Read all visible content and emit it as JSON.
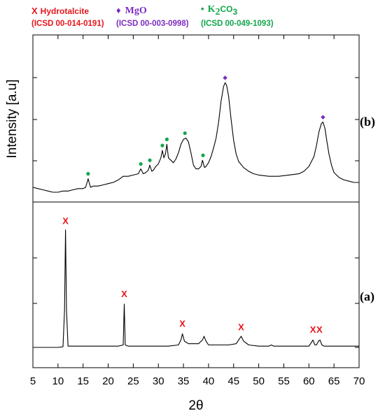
{
  "legend": [
    {
      "marker": "x",
      "symbol": "X",
      "name": "Hydrotalcite",
      "name_sub": "",
      "name_after": "",
      "reference": "(ICSD 00-014-0191)",
      "color": "#e8151b"
    },
    {
      "marker": "diamond",
      "symbol": "♦",
      "name": "MgO",
      "name_sub": "",
      "name_after": "",
      "reference": "(ICSD 00-003-0998)",
      "color": "#7b2cbf"
    },
    {
      "marker": "dot",
      "symbol": "•",
      "name": "K",
      "name_sub": "2",
      "name_after": "CO",
      "name_sub2": "3",
      "reference": "(ICSD 00-049-1093)",
      "color": "#12a64b"
    }
  ],
  "chart_data": {
    "type": "line",
    "xlabel": "2θ",
    "ylabel": "Intensity [a.u]",
    "xlim": [
      5,
      70
    ],
    "xticks": [
      5,
      10,
      15,
      20,
      25,
      30,
      35,
      40,
      45,
      50,
      55,
      60,
      65,
      70
    ],
    "grid": false,
    "legend_position": "top",
    "panels": [
      {
        "label": "(b)",
        "ylim": [
          0,
          100
        ],
        "series": [
          {
            "points": [
              [
                5,
                0
              ],
              [
                6,
                -1
              ],
              [
                7,
                -2
              ],
              [
                8,
                -3
              ],
              [
                9,
                -4
              ],
              [
                10,
                -4
              ],
              [
                11,
                -3
              ],
              [
                12,
                -3
              ],
              [
                13,
                -2
              ],
              [
                14,
                -1
              ],
              [
                15,
                -1
              ],
              [
                15.5,
                0
              ],
              [
                15.8,
                4
              ],
              [
                16,
                7
              ],
              [
                16.2,
                4
              ],
              [
                16.5,
                0
              ],
              [
                17,
                1
              ],
              [
                18,
                1
              ],
              [
                19,
                2
              ],
              [
                20,
                3
              ],
              [
                21,
                4
              ],
              [
                22,
                6
              ],
              [
                23,
                9
              ],
              [
                24,
                9
              ],
              [
                25,
                10
              ],
              [
                26,
                11
              ],
              [
                26.5,
                15
              ],
              [
                27,
                11
              ],
              [
                27.5,
                12
              ],
              [
                28,
                14
              ],
              [
                28.3,
                18
              ],
              [
                28.7,
                13
              ],
              [
                29,
                14
              ],
              [
                29.5,
                17
              ],
              [
                30,
                19
              ],
              [
                30.5,
                24
              ],
              [
                30.8,
                30
              ],
              [
                31.1,
                24
              ],
              [
                31.4,
                27
              ],
              [
                31.7,
                35
              ],
              [
                32,
                24
              ],
              [
                32.5,
                22
              ],
              [
                33,
                20
              ],
              [
                33.5,
                23
              ],
              [
                34,
                28
              ],
              [
                34.5,
                35
              ],
              [
                35,
                39
              ],
              [
                35.5,
                40
              ],
              [
                36,
                37
              ],
              [
                36.5,
                28
              ],
              [
                37,
                18
              ],
              [
                37.5,
                15
              ],
              [
                38,
                15
              ],
              [
                38.5,
                17
              ],
              [
                38.8,
                22
              ],
              [
                39.2,
                16
              ],
              [
                39.5,
                17
              ],
              [
                40,
                20
              ],
              [
                40.5,
                25
              ],
              [
                41,
                32
              ],
              [
                41.5,
                40
              ],
              [
                42,
                53
              ],
              [
                42.5,
                70
              ],
              [
                43,
                82
              ],
              [
                43.3,
                85
              ],
              [
                43.6,
                83
              ],
              [
                44,
                74
              ],
              [
                44.5,
                55
              ],
              [
                45,
                38
              ],
              [
                45.5,
                27
              ],
              [
                46,
                21
              ],
              [
                47,
                16
              ],
              [
                48,
                13
              ],
              [
                49,
                11
              ],
              [
                50,
                10
              ],
              [
                52,
                9
              ],
              [
                54,
                9
              ],
              [
                56,
                10
              ],
              [
                58,
                11
              ],
              [
                59,
                13
              ],
              [
                60,
                17
              ],
              [
                61,
                25
              ],
              [
                61.5,
                34
              ],
              [
                62,
                45
              ],
              [
                62.5,
                52
              ],
              [
                62.8,
                53
              ],
              [
                63.2,
                48
              ],
              [
                63.6,
                37
              ],
              [
                64,
                27
              ],
              [
                64.5,
                18
              ],
              [
                65,
                12
              ],
              [
                66,
                8
              ],
              [
                67,
                6
              ],
              [
                68,
                5
              ],
              [
                69,
                4
              ],
              [
                70,
                4
              ]
            ]
          }
        ],
        "markers": [
          {
            "type": "dot",
            "x": 16.0,
            "y": 11
          },
          {
            "type": "dot",
            "x": 26.5,
            "y": 19
          },
          {
            "type": "dot",
            "x": 28.3,
            "y": 22
          },
          {
            "type": "dot",
            "x": 30.8,
            "y": 34
          },
          {
            "type": "dot",
            "x": 31.7,
            "y": 39
          },
          {
            "type": "dot",
            "x": 35.3,
            "y": 44
          },
          {
            "type": "dot",
            "x": 38.9,
            "y": 26
          },
          {
            "type": "diamond",
            "x": 43.3,
            "y": 89
          },
          {
            "type": "diamond",
            "x": 62.8,
            "y": 57
          }
        ]
      },
      {
        "label": "(a)",
        "ylim": [
          0,
          100
        ],
        "series": [
          {
            "points": [
              [
                5,
                0
              ],
              [
                8,
                0
              ],
              [
                10,
                0
              ],
              [
                11,
                0.5
              ],
              [
                11.3,
                30
              ],
              [
                11.5,
                95
              ],
              [
                11.7,
                30
              ],
              [
                12,
                1
              ],
              [
                13,
                1
              ],
              [
                15,
                1
              ],
              [
                18,
                1
              ],
              [
                20,
                1
              ],
              [
                22,
                1
              ],
              [
                23,
                2
              ],
              [
                23.2,
                35
              ],
              [
                23.4,
                2
              ],
              [
                24,
                1
              ],
              [
                26,
                1
              ],
              [
                28,
                1
              ],
              [
                30,
                1
              ],
              [
                32,
                1
              ],
              [
                34,
                2
              ],
              [
                34.5,
                6
              ],
              [
                34.8,
                11
              ],
              [
                35.2,
                5
              ],
              [
                36,
                3
              ],
              [
                37,
                3
              ],
              [
                38,
                3
              ],
              [
                38.8,
                6
              ],
              [
                39.1,
                9
              ],
              [
                39.5,
                5
              ],
              [
                40,
                2
              ],
              [
                42,
                2
              ],
              [
                44,
                2
              ],
              [
                45.5,
                3
              ],
              [
                46,
                6
              ],
              [
                46.5,
                9
              ],
              [
                47,
                5
              ],
              [
                48,
                2
              ],
              [
                50,
                1
              ],
              [
                52,
                1
              ],
              [
                52.5,
                2
              ],
              [
                53,
                1
              ],
              [
                55,
                1
              ],
              [
                58,
                1
              ],
              [
                60,
                1
              ],
              [
                60.5,
                4
              ],
              [
                60.8,
                6
              ],
              [
                61.2,
                2
              ],
              [
                61.5,
                2
              ],
              [
                61.9,
                5
              ],
              [
                62.2,
                6
              ],
              [
                62.6,
                2
              ],
              [
                63,
                1
              ],
              [
                64,
                1
              ],
              [
                65,
                1
              ],
              [
                66,
                1
              ],
              [
                68,
                1
              ],
              [
                70,
                1
              ]
            ]
          }
        ],
        "markers": [
          {
            "type": "x",
            "x": 11.5,
            "y": 102
          },
          {
            "type": "x",
            "x": 23.2,
            "y": 43
          },
          {
            "type": "x",
            "x": 34.8,
            "y": 19
          },
          {
            "type": "x",
            "x": 46.5,
            "y": 16
          },
          {
            "type": "x",
            "x": 60.8,
            "y": 14
          },
          {
            "type": "x",
            "x": 62.1,
            "y": 14
          }
        ]
      }
    ]
  }
}
